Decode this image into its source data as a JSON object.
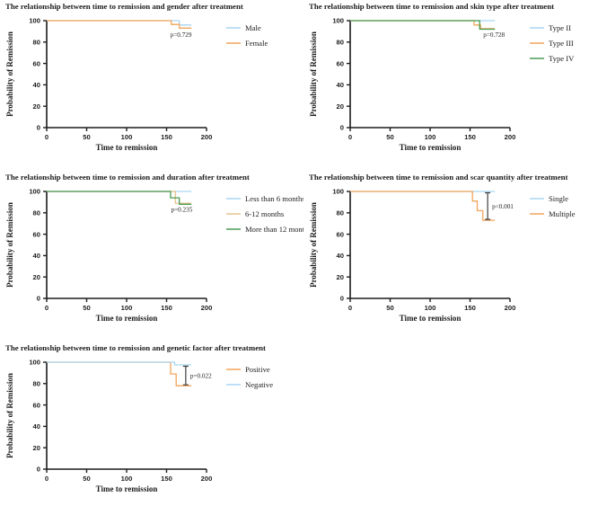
{
  "figure": {
    "background": "#ffffff",
    "axis_color": "#1c1c1c",
    "bracket_color": "#3d3d3d"
  },
  "chart_data": [
    {
      "id": "gender",
      "type": "line",
      "step": true,
      "title": "The relationship between time to remission and gender after treatment",
      "xlabel": "Time to remission",
      "ylabel": "Probability of Remission",
      "xlim": [
        0,
        200
      ],
      "ylim": [
        0,
        100
      ],
      "xticks": [
        0,
        50,
        100,
        150,
        200
      ],
      "yticks": [
        0,
        20,
        40,
        60,
        80,
        100
      ],
      "grid": false,
      "legend_position": "right",
      "series": [
        {
          "name": "Male",
          "color": "#A8D6F2",
          "points": [
            [
              0,
              100
            ],
            [
              166,
              100
            ],
            [
              166,
              96
            ],
            [
              181,
              96
            ]
          ]
        },
        {
          "name": "Female",
          "color": "#F3A45A",
          "points": [
            [
              0,
              100
            ],
            [
              156,
              100
            ],
            [
              156,
              96.5
            ],
            [
              166,
              96.5
            ],
            [
              166,
              93
            ],
            [
              181,
              93
            ]
          ]
        }
      ],
      "p_label": {
        "text": "p=0.729",
        "t": 168,
        "p": 85,
        "anchor": "middle"
      },
      "bracket": null
    },
    {
      "id": "skin-type",
      "type": "line",
      "step": true,
      "title": "The relationship between time to remission and skin type after treatment",
      "xlabel": "Time to remission",
      "ylabel": "Probability of Remission",
      "xlim": [
        0,
        200
      ],
      "ylim": [
        0,
        100
      ],
      "xticks": [
        0,
        50,
        100,
        150,
        200
      ],
      "yticks": [
        0,
        20,
        40,
        60,
        80,
        100
      ],
      "grid": false,
      "legend_position": "right",
      "series": [
        {
          "name": "Type II",
          "color": "#A8D6F2",
          "points": [
            [
              0,
              100
            ],
            [
              181,
              100
            ]
          ]
        },
        {
          "name": "Type III",
          "color": "#F3A45A",
          "points": [
            [
              0,
              100
            ],
            [
              155,
              100
            ],
            [
              155,
              96
            ],
            [
              163,
              96
            ],
            [
              163,
              92.5
            ],
            [
              181,
              92.5
            ]
          ]
        },
        {
          "name": "Type IV",
          "color": "#4C9C52",
          "points": [
            [
              0,
              100
            ],
            [
              162,
              100
            ],
            [
              162,
              92
            ],
            [
              181,
              92
            ]
          ]
        }
      ],
      "p_label": {
        "text": "p=0.728",
        "t": 180,
        "p": 85,
        "anchor": "middle"
      },
      "bracket": null
    },
    {
      "id": "duration",
      "type": "line",
      "step": true,
      "title": "The relationship between time to remission and duration after treatment",
      "xlabel": "Time to remission",
      "ylabel": "Probability of Remission",
      "xlim": [
        0,
        200
      ],
      "ylim": [
        0,
        100
      ],
      "xticks": [
        0,
        50,
        100,
        150,
        200
      ],
      "yticks": [
        0,
        20,
        40,
        60,
        80,
        100
      ],
      "grid": false,
      "legend_position": "right",
      "series": [
        {
          "name": "Less than 6 months",
          "color": "#A8D6F2",
          "points": [
            [
              0,
              100
            ],
            [
              181,
              100
            ]
          ]
        },
        {
          "name": "6-12 months",
          "color": "#E4C28C",
          "points": [
            [
              0,
              100
            ],
            [
              161,
              100
            ],
            [
              161,
              89
            ],
            [
              181,
              89
            ]
          ]
        },
        {
          "name": "More than 12 months",
          "color": "#4C9C52",
          "points": [
            [
              0,
              100
            ],
            [
              155,
              100
            ],
            [
              155,
              94
            ],
            [
              166,
              94
            ],
            [
              166,
              88
            ],
            [
              181,
              88
            ]
          ]
        }
      ],
      "p_label": {
        "text": "p=0.235",
        "t": 169,
        "p": 81,
        "anchor": "middle"
      },
      "bracket": null
    },
    {
      "id": "scar-quantity",
      "type": "line",
      "step": true,
      "title": "The relationship between time to remission and scar quantity after treatment",
      "xlabel": "Time to remission",
      "ylabel": "Probability of Remission",
      "xlim": [
        0,
        200
      ],
      "ylim": [
        0,
        100
      ],
      "xticks": [
        0,
        50,
        100,
        150,
        200
      ],
      "yticks": [
        0,
        20,
        40,
        60,
        80,
        100
      ],
      "grid": false,
      "legend_position": "right",
      "series": [
        {
          "name": "Single",
          "color": "#A8D6F2",
          "points": [
            [
              0,
              100
            ],
            [
              181,
              100
            ]
          ]
        },
        {
          "name": "Multiple",
          "color": "#F3A45A",
          "points": [
            [
              0,
              100
            ],
            [
              153,
              100
            ],
            [
              153,
              91
            ],
            [
              159,
              91
            ],
            [
              159,
              82
            ],
            [
              166,
              82
            ],
            [
              166,
              73
            ],
            [
              181,
              73
            ]
          ]
        }
      ],
      "p_label": null,
      "bracket": {
        "t": 172,
        "p_top": 100,
        "p_bottom": 73,
        "label": "p<0.001"
      }
    },
    {
      "id": "genetic-factor",
      "type": "line",
      "step": true,
      "title": "The relationship between time to remission and genetic factor after treatment",
      "xlabel": "Time to remission",
      "ylabel": "Probability of Remission",
      "xlim": [
        0,
        200
      ],
      "ylim": [
        0,
        100
      ],
      "xticks": [
        0,
        50,
        100,
        150,
        200
      ],
      "yticks": [
        0,
        20,
        40,
        60,
        80,
        100
      ],
      "grid": false,
      "legend_position": "right",
      "series": [
        {
          "name": "Positive",
          "color": "#F3A45A",
          "points": [
            [
              0,
              100
            ],
            [
              155,
              100
            ],
            [
              155,
              89
            ],
            [
              162,
              89
            ],
            [
              162,
              78
            ],
            [
              181,
              78
            ]
          ]
        },
        {
          "name": "Negative",
          "color": "#A8D6F2",
          "points": [
            [
              0,
              100
            ],
            [
              160,
              100
            ],
            [
              160,
              97.5
            ],
            [
              181,
              97.5
            ]
          ]
        }
      ],
      "p_label": null,
      "bracket": {
        "t": 174,
        "p_top": 97.5,
        "p_bottom": 78,
        "label": "p=0.022"
      }
    }
  ]
}
